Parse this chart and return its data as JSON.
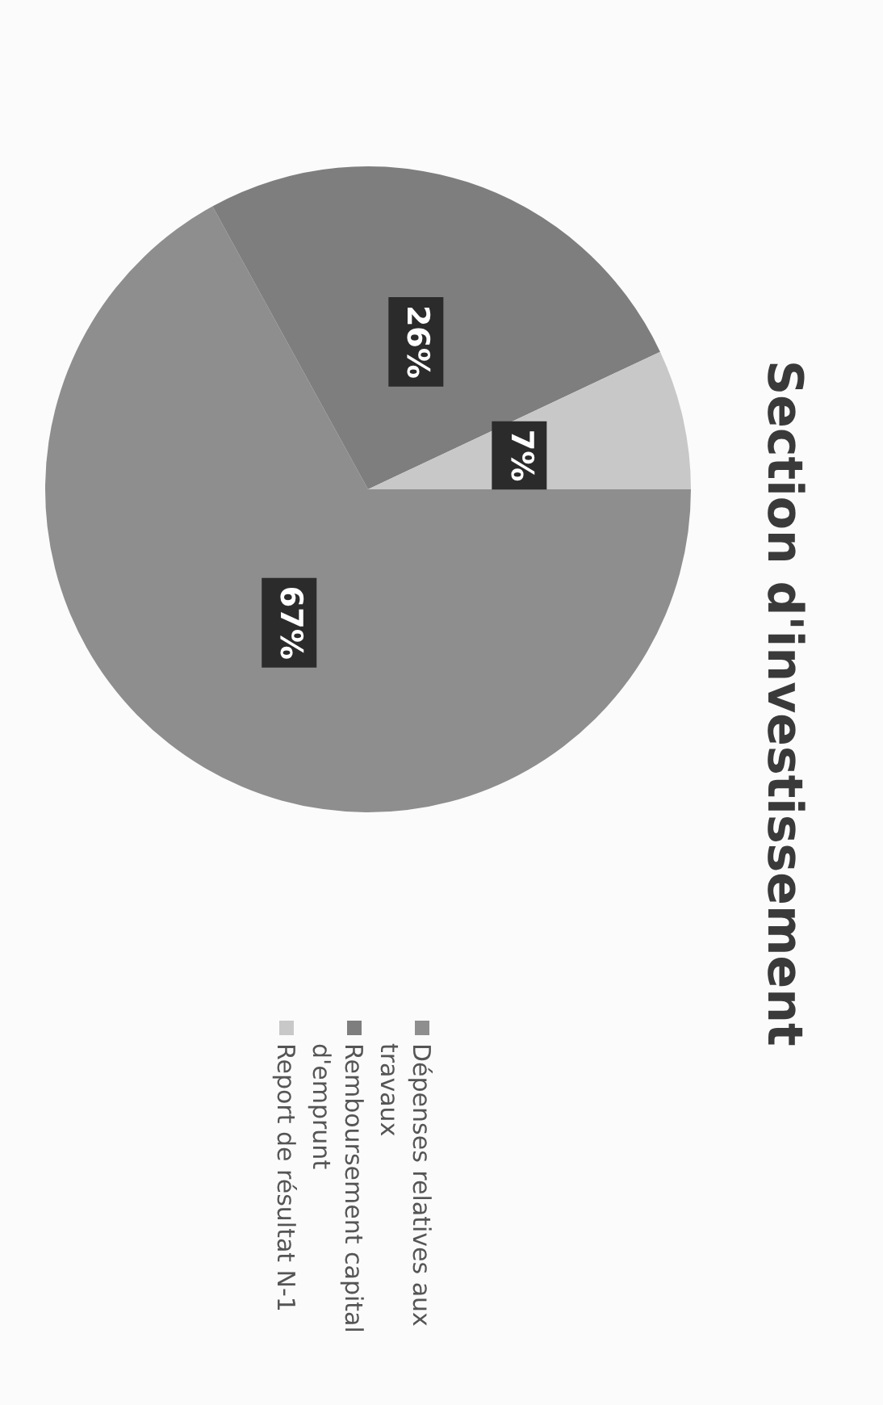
{
  "chart_data": {
    "type": "pie",
    "title": "Section d'investissement",
    "categories": [
      "Dépenses relatives aux travaux",
      "Remboursement capital d'emprunt",
      "Report de résultat N-1"
    ],
    "values": [
      67,
      26,
      7
    ],
    "colors": [
      "#8e8e8e",
      "#7e7e7e",
      "#c8c8c8"
    ],
    "value_labels": [
      "67%",
      "26%",
      "7%"
    ],
    "legend": "bottom"
  }
}
